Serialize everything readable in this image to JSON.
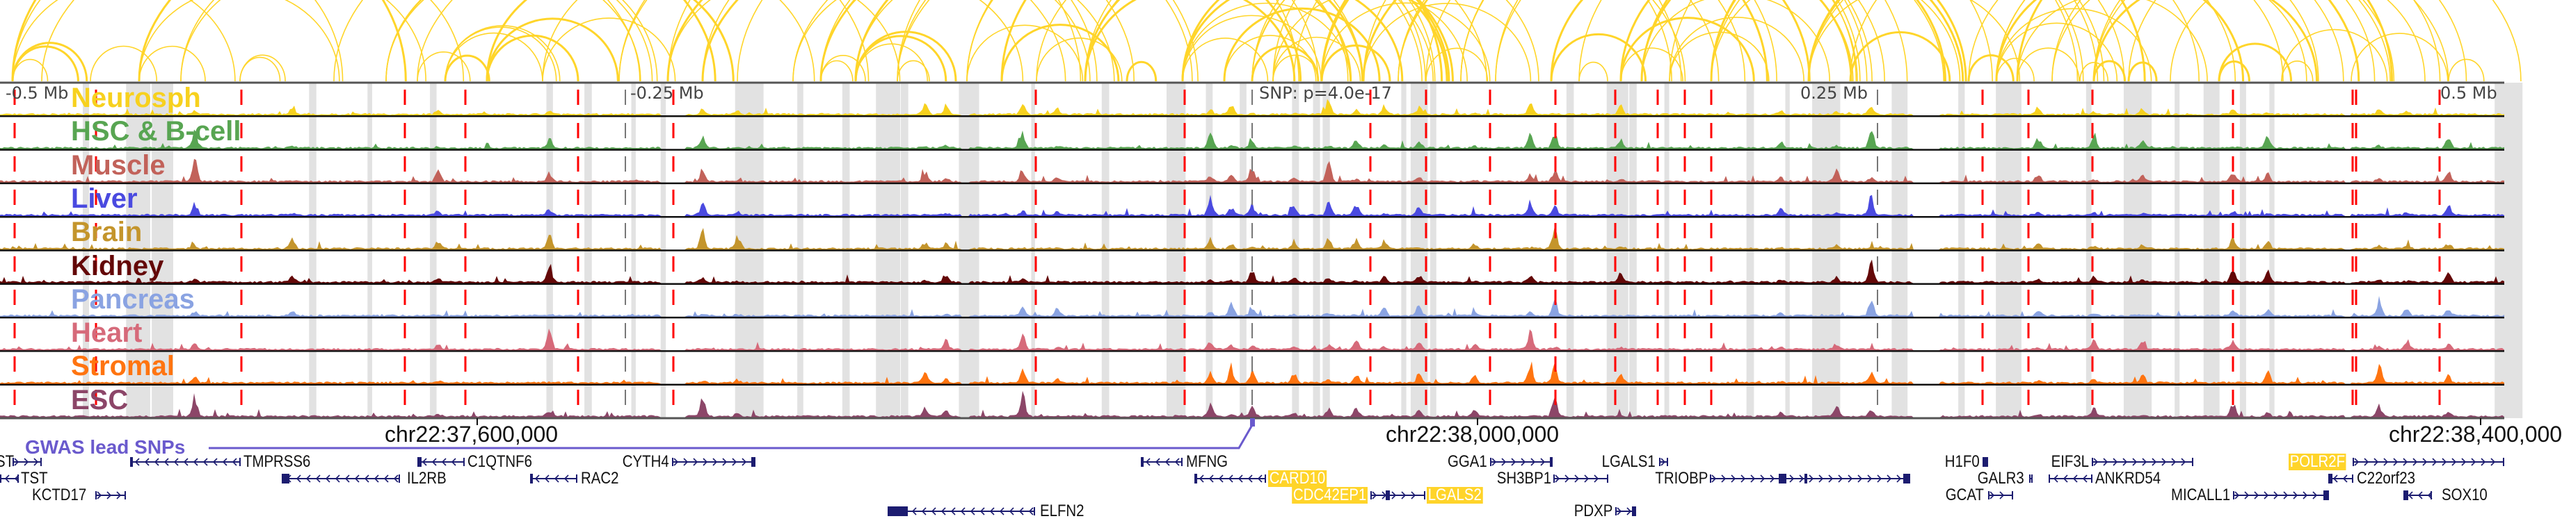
{
  "browser": {
    "axis_labels": [
      "-0.5 Mb",
      "-0.25 Mb",
      "0.25 Mb",
      "0.5 Mb"
    ],
    "snp_label": "SNP: p=4.0e-17",
    "coordinates": [
      "chr22:37,600,000",
      "chr22:38,000,000",
      "chr22:38,400,000"
    ]
  },
  "tracks": [
    {
      "label": "Neurosph",
      "color": "#f7d11e"
    },
    {
      "label": "HSC & B-cell",
      "color": "#58a552"
    },
    {
      "label": "Muscle",
      "color": "#c2625a"
    },
    {
      "label": "Liver",
      "color": "#4a4ae0"
    },
    {
      "label": "Brain",
      "color": "#c4952c"
    },
    {
      "label": "Kidney",
      "color": "#640808"
    },
    {
      "label": "Pancreas",
      "color": "#8aa3e2"
    },
    {
      "label": "Heart",
      "color": "#d66a7a"
    },
    {
      "label": "Stromal",
      "color": "#ff7410"
    },
    {
      "label": "ESC",
      "color": "#8c4668"
    }
  ],
  "gwas": {
    "label": "GWAS lead SNPs",
    "color": "#6a5acd"
  },
  "colors": {
    "arc": "#ffd52a",
    "highlight": "#ffd42a",
    "gene": "#1c1c70",
    "eqtl_line": "#ff0000",
    "band": "#e2e2e2"
  },
  "genes": [
    {
      "name": "ST",
      "strand": "+",
      "highlighted": false
    },
    {
      "name": "TMPRSS6",
      "strand": "-",
      "highlighted": false
    },
    {
      "name": "C1QTNF6",
      "strand": "-",
      "highlighted": false
    },
    {
      "name": "CYTH4",
      "strand": "+",
      "highlighted": false
    },
    {
      "name": "MFNG",
      "strand": "-",
      "highlighted": false
    },
    {
      "name": "GGA1",
      "strand": "+",
      "highlighted": false
    },
    {
      "name": "LGALS1",
      "strand": "+",
      "highlighted": false
    },
    {
      "name": "H1F0",
      "strand": "+",
      "highlighted": false
    },
    {
      "name": "EIF3L",
      "strand": "+",
      "highlighted": false
    },
    {
      "name": "POLR2F",
      "strand": "+",
      "highlighted": true
    },
    {
      "name": "TST",
      "strand": "-",
      "highlighted": false
    },
    {
      "name": "IL2RB",
      "strand": "-",
      "highlighted": false
    },
    {
      "name": "RAC2",
      "strand": "-",
      "highlighted": false
    },
    {
      "name": "CARD10",
      "strand": "-",
      "highlighted": true
    },
    {
      "name": "SH3BP1",
      "strand": "+",
      "highlighted": false
    },
    {
      "name": "TRIOBP",
      "strand": "+",
      "highlighted": false
    },
    {
      "name": "GALR3",
      "strand": "+",
      "highlighted": false
    },
    {
      "name": "ANKRD54",
      "strand": "-",
      "highlighted": false
    },
    {
      "name": "C22orf23",
      "strand": "-",
      "highlighted": false
    },
    {
      "name": "KCTD17",
      "strand": "+",
      "highlighted": false
    },
    {
      "name": "CDC42EP1",
      "strand": "+",
      "highlighted": true
    },
    {
      "name": "LGALS2",
      "strand": "-",
      "highlighted": true
    },
    {
      "name": "GCAT",
      "strand": "+",
      "highlighted": false
    },
    {
      "name": "MICALL1",
      "strand": "+",
      "highlighted": false
    },
    {
      "name": "SOX10",
      "strand": "-",
      "highlighted": false
    },
    {
      "name": "ELFN2",
      "strand": "-",
      "highlighted": false
    },
    {
      "name": "PDXP",
      "strand": "+",
      "highlighted": false
    }
  ]
}
